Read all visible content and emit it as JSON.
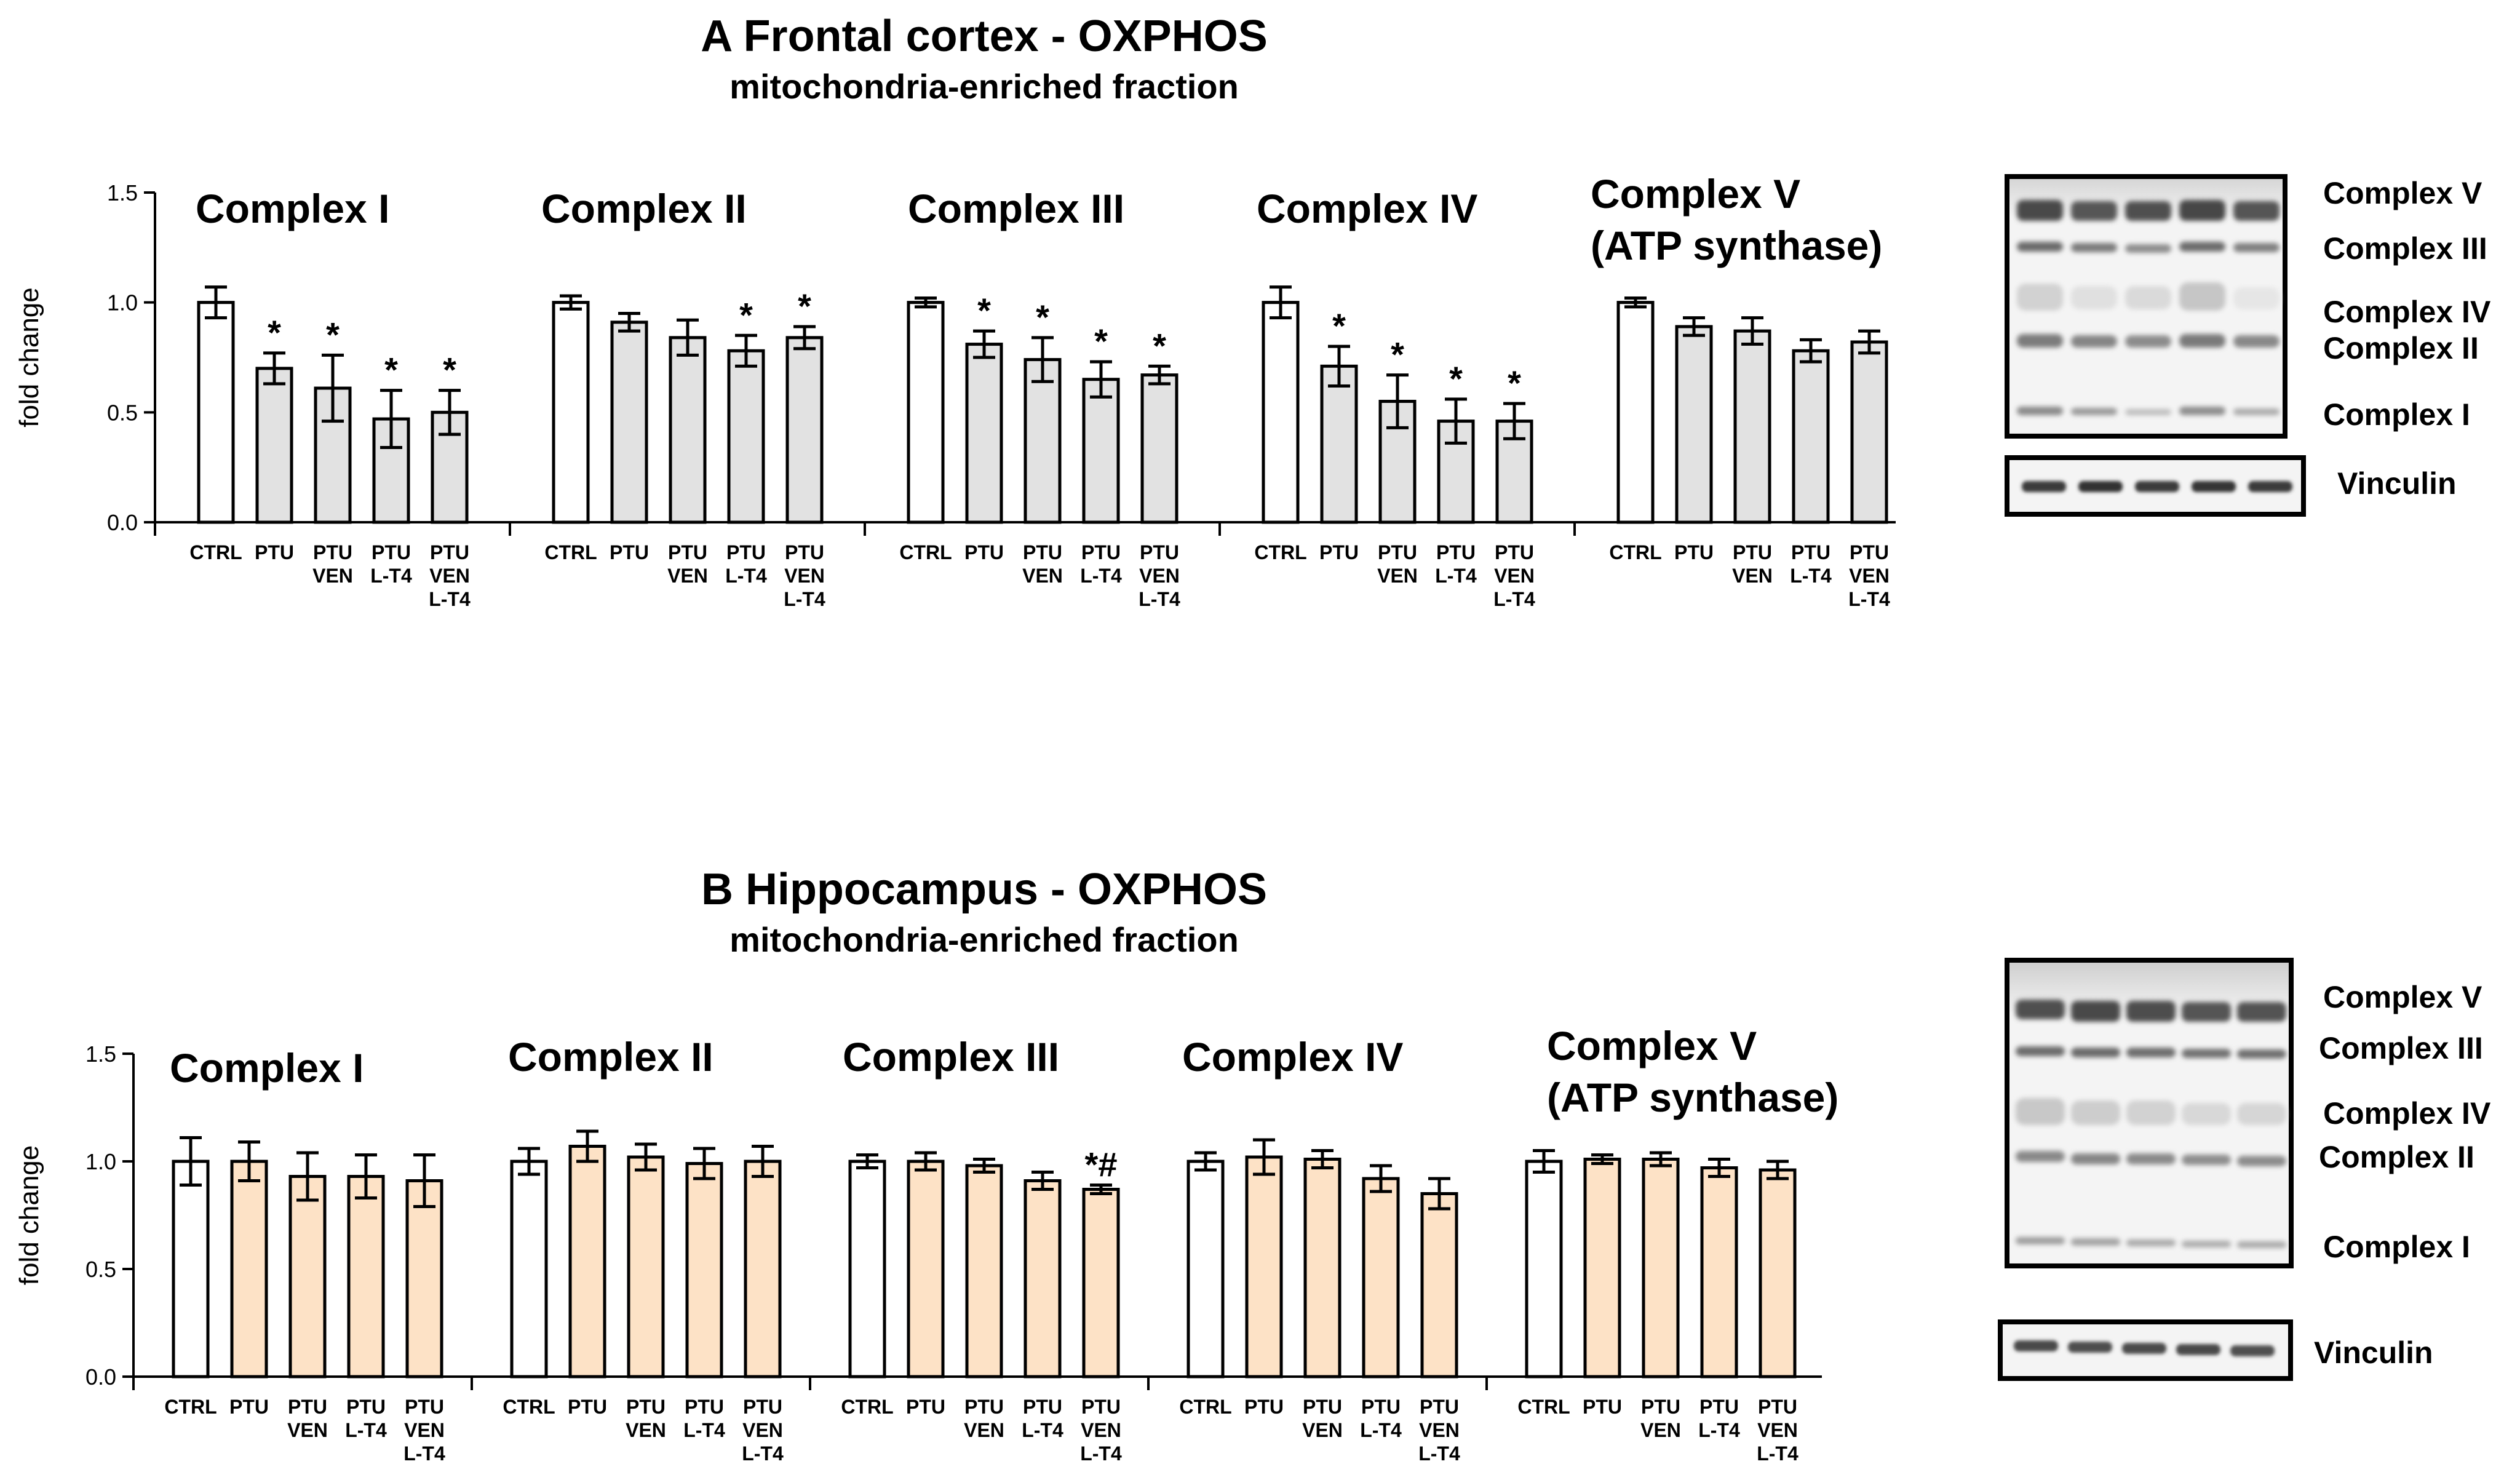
{
  "colors": {
    "ctrl": "#ffffff",
    "frontal": "#e2e2e2",
    "hippocampus": "#fde2c6",
    "axis": "#000000"
  },
  "panel_a": {
    "title": "A Frontal cortex - OXPHOS",
    "subtitle": "mitochondria-enriched fraction",
    "ylabel": "fold change",
    "blot": {
      "bands": [
        "Complex V",
        "Complex III",
        "Complex IV",
        "Complex II",
        "Complex I"
      ],
      "loading_control": "Vinculin"
    }
  },
  "panel_b": {
    "title": "B Hippocampus - OXPHOS",
    "subtitle": "mitochondria-enriched fraction",
    "ylabel": "fold change",
    "blot": {
      "bands": [
        "Complex V",
        "Complex III",
        "Complex IV",
        "Complex II",
        "Complex I"
      ],
      "loading_control": "Vinculin"
    }
  },
  "chart_data": [
    {
      "type": "bar",
      "title": "A Frontal cortex - OXPHOS",
      "subtitle": "mitochondria-enriched fraction",
      "ylabel": "fold change",
      "ylim": [
        0,
        1.5
      ],
      "yticks": [
        "0.0",
        "0.5",
        "1.0",
        "1.5"
      ],
      "categories": [
        [
          "CTRL"
        ],
        [
          "PTU"
        ],
        [
          "PTU",
          "VEN"
        ],
        [
          "PTU",
          "L-T4"
        ],
        [
          "PTU",
          "VEN",
          "L-T4"
        ]
      ],
      "groups": [
        {
          "name": "Complex I",
          "values": [
            1.0,
            0.7,
            0.61,
            0.47,
            0.5
          ],
          "errors": [
            0.07,
            0.07,
            0.15,
            0.13,
            0.1
          ],
          "annotations": [
            "",
            "*",
            "*",
            "*",
            "*"
          ]
        },
        {
          "name": "Complex II",
          "values": [
            1.0,
            0.91,
            0.84,
            0.78,
            0.84
          ],
          "errors": [
            0.03,
            0.04,
            0.08,
            0.07,
            0.05
          ],
          "annotations": [
            "",
            "",
            "",
            "*",
            "*"
          ]
        },
        {
          "name": "Complex III",
          "values": [
            1.0,
            0.81,
            0.74,
            0.65,
            0.67
          ],
          "errors": [
            0.02,
            0.06,
            0.1,
            0.08,
            0.04
          ],
          "annotations": [
            "",
            "*",
            "*",
            "*",
            "*"
          ]
        },
        {
          "name": "Complex IV",
          "values": [
            1.0,
            0.71,
            0.55,
            0.46,
            0.46
          ],
          "errors": [
            0.07,
            0.09,
            0.12,
            0.1,
            0.08
          ],
          "annotations": [
            "",
            "*",
            "*",
            "*",
            "*"
          ]
        },
        {
          "name": [
            "Complex V",
            "(ATP synthase)"
          ],
          "values": [
            1.0,
            0.89,
            0.87,
            0.78,
            0.82
          ],
          "errors": [
            0.02,
            0.04,
            0.06,
            0.05,
            0.05
          ],
          "annotations": [
            "",
            "",
            "",
            "",
            ""
          ]
        }
      ]
    },
    {
      "type": "bar",
      "title": "B Hippocampus - OXPHOS",
      "subtitle": "mitochondria-enriched fraction",
      "ylabel": "fold change",
      "ylim": [
        0,
        1.5
      ],
      "yticks": [
        "0.0",
        "0.5",
        "1.0",
        "1.5"
      ],
      "categories": [
        [
          "CTRL"
        ],
        [
          "PTU"
        ],
        [
          "PTU",
          "VEN"
        ],
        [
          "PTU",
          "L-T4"
        ],
        [
          "PTU",
          "VEN",
          "L-T4"
        ]
      ],
      "groups": [
        {
          "name": "Complex I",
          "values": [
            1.0,
            1.0,
            0.93,
            0.93,
            0.91
          ],
          "errors": [
            0.11,
            0.09,
            0.11,
            0.1,
            0.12
          ],
          "annotations": [
            "",
            "",
            "",
            "",
            ""
          ]
        },
        {
          "name": "Complex II",
          "values": [
            1.0,
            1.07,
            1.02,
            0.99,
            1.0
          ],
          "errors": [
            0.06,
            0.07,
            0.06,
            0.07,
            0.07
          ],
          "annotations": [
            "",
            "",
            "",
            "",
            ""
          ]
        },
        {
          "name": "Complex III",
          "values": [
            1.0,
            1.0,
            0.98,
            0.91,
            0.87
          ],
          "errors": [
            0.03,
            0.04,
            0.03,
            0.04,
            0.02
          ],
          "annotations": [
            "",
            "",
            "",
            "",
            "*#"
          ]
        },
        {
          "name": "Complex IV",
          "values": [
            1.0,
            1.02,
            1.01,
            0.92,
            0.85
          ],
          "errors": [
            0.04,
            0.08,
            0.04,
            0.06,
            0.07
          ],
          "annotations": [
            "",
            "",
            "",
            "",
            ""
          ]
        },
        {
          "name": [
            "Complex V",
            "(ATP synthase)"
          ],
          "values": [
            1.0,
            1.01,
            1.01,
            0.97,
            0.96
          ],
          "errors": [
            0.05,
            0.02,
            0.03,
            0.04,
            0.04
          ],
          "annotations": [
            "",
            "",
            "",
            "",
            ""
          ]
        }
      ]
    }
  ]
}
